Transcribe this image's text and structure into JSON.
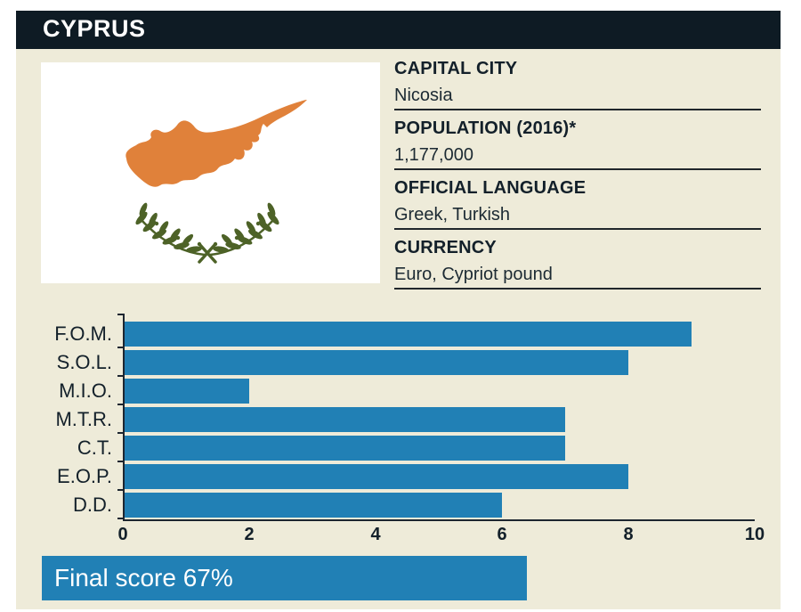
{
  "header": {
    "title": "CYPRUS"
  },
  "facts": [
    {
      "label": "CAPITAL CITY",
      "value": "Nicosia"
    },
    {
      "label": "POPULATION (2016)*",
      "value": "1,177,000"
    },
    {
      "label": "OFFICIAL LANGUAGE",
      "value": "Greek, Turkish"
    },
    {
      "label": "CURRENCY",
      "value": "Euro, Cypriot pound"
    }
  ],
  "flag": {
    "name": "flag-of-cyprus"
  },
  "chart_data": {
    "type": "bar",
    "orientation": "horizontal",
    "categories": [
      "F.O.M.",
      "S.O.L.",
      "M.I.O.",
      "M.T.R.",
      "C.T.",
      "E.O.P.",
      "D.D."
    ],
    "values": [
      9,
      8,
      2,
      7,
      7,
      8,
      6
    ],
    "xlim": [
      0,
      10
    ],
    "x_ticks": [
      0,
      2,
      4,
      6,
      8,
      10
    ],
    "title": "",
    "xlabel": "",
    "ylabel": "",
    "grid": false,
    "legend": "none",
    "bar_color": "#2180b5"
  },
  "final_score": {
    "label": "Final score 67%",
    "value_percent": 67
  },
  "colors": {
    "header-bg": "#0e1b24",
    "panel-bg": "#eeebd9",
    "accent": "#2180b5",
    "flag-orange": "#e0813a",
    "olive-green": "#4d6227",
    "axis": "#1d2630",
    "text": "#13202a"
  }
}
